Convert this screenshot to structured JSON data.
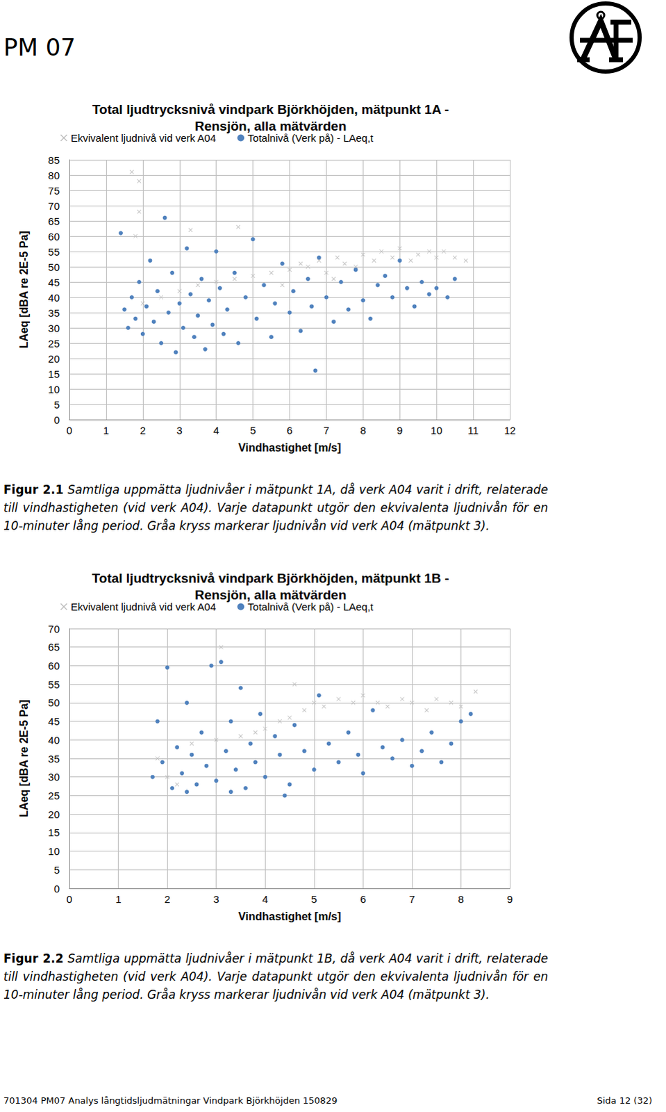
{
  "header": {
    "title": "PM 07"
  },
  "chart_data": [
    {
      "type": "scatter",
      "title": "Total ljudtrycksnivå vindpark Björkhöjden, mätpunkt 1A -\nRensjön, alla mätvärden",
      "x_label": "Vindhastighet [m/s]",
      "y_label": "LAeq [dBA re 2E-5 Pa]",
      "xlim": [
        0,
        12
      ],
      "xticks": [
        0,
        1,
        2,
        3,
        4,
        5,
        6,
        7,
        8,
        9,
        10,
        11,
        12
      ],
      "ylim": [
        0,
        85
      ],
      "yticks": [
        0,
        5,
        10,
        15,
        20,
        25,
        30,
        35,
        40,
        45,
        50,
        55,
        60,
        65,
        70,
        75,
        80,
        85
      ],
      "grid": true,
      "legend": "top",
      "series": [
        {
          "name": "Ekvivalent ljudnivå vid verk A04",
          "color": "#bfbfbf",
          "marker": "x",
          "x": [
            1.7,
            1.9,
            1.9,
            1.8,
            3.3,
            4.6,
            2.0,
            2.5,
            3.0,
            3.5,
            4.0,
            4.5,
            5.0,
            5.5,
            6.0,
            6.3,
            6.5,
            6.8,
            7.0,
            7.3,
            7.5,
            7.8,
            8.0,
            8.3,
            8.5,
            8.8,
            9.0,
            9.3,
            9.5,
            9.8,
            10.0,
            10.2,
            10.5,
            10.8,
            5.8,
            7.2
          ],
          "values": [
            81,
            78,
            68,
            60,
            62,
            63,
            38,
            40,
            42,
            44,
            45,
            46,
            47,
            48,
            49,
            51,
            50,
            52,
            48,
            53,
            51,
            50,
            54,
            52,
            55,
            53,
            56,
            52,
            54,
            55,
            53,
            55,
            53,
            52,
            44,
            46
          ]
        },
        {
          "name": "Totalnivå (Verk på) - LAeq,t",
          "color": "#4f81bd",
          "marker": "circle",
          "x": [
            1.4,
            1.5,
            1.6,
            1.7,
            1.8,
            1.9,
            2.0,
            2.1,
            2.2,
            2.3,
            2.4,
            2.5,
            2.6,
            2.7,
            2.8,
            2.9,
            3.0,
            3.1,
            3.2,
            3.3,
            3.4,
            3.5,
            3.6,
            3.7,
            3.8,
            3.9,
            4.0,
            4.1,
            4.2,
            4.3,
            4.5,
            4.6,
            4.8,
            5.0,
            5.1,
            5.3,
            5.5,
            5.6,
            5.8,
            6.0,
            6.1,
            6.3,
            6.5,
            6.6,
            6.7,
            6.8,
            7.0,
            7.2,
            7.4,
            7.6,
            7.8,
            8.0,
            8.2,
            8.4,
            8.6,
            8.8,
            9.0,
            9.2,
            9.4,
            9.6,
            9.8,
            10.0,
            10.3,
            10.5
          ],
          "values": [
            61,
            36,
            30,
            40,
            33,
            45,
            28,
            37,
            52,
            32,
            42,
            25,
            66,
            35,
            48,
            22,
            38,
            30,
            56,
            41,
            27,
            34,
            46,
            23,
            39,
            31,
            55,
            43,
            28,
            36,
            48,
            25,
            40,
            59,
            33,
            44,
            27,
            38,
            51,
            35,
            42,
            29,
            46,
            37,
            16,
            53,
            40,
            32,
            45,
            36,
            49,
            39,
            33,
            44,
            47,
            40,
            52,
            43,
            37,
            45,
            41,
            43,
            40,
            46
          ]
        }
      ]
    },
    {
      "type": "scatter",
      "title": "Total ljudtrycksnivå vindpark Björkhöjden, mätpunkt 1B -\nRensjön, alla mätvärden",
      "x_label": "Vindhastighet [m/s]",
      "y_label": "LAeq [dBA re 2E-5 Pa]",
      "xlim": [
        0,
        9
      ],
      "xticks": [
        0,
        1,
        2,
        3,
        4,
        5,
        6,
        7,
        8,
        9
      ],
      "ylim": [
        0,
        70
      ],
      "yticks": [
        0,
        5,
        10,
        15,
        20,
        25,
        30,
        35,
        40,
        45,
        50,
        55,
        60,
        65,
        70
      ],
      "grid": true,
      "legend": "top",
      "series": [
        {
          "name": "Ekvivalent ljudnivå vid verk A04",
          "color": "#bfbfbf",
          "marker": "x",
          "x": [
            1.8,
            2.0,
            2.5,
            3.0,
            3.1,
            3.5,
            4.0,
            4.3,
            4.5,
            4.8,
            5.0,
            5.2,
            5.5,
            5.8,
            6.0,
            6.3,
            6.5,
            6.8,
            7.0,
            7.3,
            7.5,
            7.8,
            8.0,
            8.3,
            3.8,
            2.2,
            4.6
          ],
          "values": [
            35,
            30,
            39,
            40,
            65,
            41,
            43,
            45,
            46,
            48,
            50,
            49,
            51,
            50,
            52,
            50,
            49,
            51,
            50,
            48,
            51,
            50,
            49,
            53,
            42,
            28,
            55
          ]
        },
        {
          "name": "Totalnivå (Verk på) - LAeq,t",
          "color": "#4f81bd",
          "marker": "circle",
          "x": [
            1.7,
            1.8,
            1.9,
            2.0,
            2.1,
            2.2,
            2.3,
            2.4,
            2.5,
            2.6,
            2.7,
            2.8,
            2.9,
            3.0,
            3.1,
            3.2,
            3.3,
            3.4,
            3.5,
            3.6,
            3.7,
            3.8,
            3.9,
            4.0,
            4.2,
            4.3,
            4.5,
            4.6,
            4.8,
            5.0,
            5.1,
            5.3,
            5.5,
            5.7,
            5.9,
            6.0,
            6.2,
            6.4,
            6.6,
            6.8,
            7.0,
            7.2,
            7.4,
            7.6,
            7.8,
            8.0,
            8.2,
            2.4,
            4.4,
            3.3
          ],
          "values": [
            30,
            45,
            34,
            59.5,
            27,
            38,
            31,
            50,
            36,
            28,
            42,
            33,
            60,
            29,
            61,
            37,
            45,
            32,
            54,
            27,
            39,
            34,
            47,
            30,
            41,
            36,
            28,
            44,
            37,
            32,
            52,
            39,
            34,
            42,
            36,
            31,
            48,
            38,
            35,
            40,
            33,
            37,
            42,
            34,
            39,
            45,
            47,
            26,
            25,
            26
          ]
        }
      ]
    }
  ],
  "captions": [
    {
      "label": "Figur 2.1",
      "text": "Samtliga uppmätta ljudnivåer i mätpunkt 1A, då verk A04 varit i drift, relaterade till vindhastigheten (vid verk A04). Varje datapunkt utgör den ekvivalenta ljudnivån för en 10-minuter lång period. Gråa kryss markerar ljudnivån vid verk A04 (mätpunkt 3)."
    },
    {
      "label": "Figur 2.2",
      "text": "Samtliga uppmätta ljudnivåer i mätpunkt 1B, då verk A04 varit i drift, relaterade till vindhastigheten (vid verk A04). Varje datapunkt utgör den ekvivalenta ljudnivån för en 10-minuter lång period. Gråa kryss markerar ljudnivån vid verk A04 (mätpunkt 3)."
    }
  ],
  "footer": {
    "left": "701304 PM07 Analys långtidsljudmätningar Vindpark Björkhöjden 150829",
    "right": "Sida 12 (32)"
  }
}
